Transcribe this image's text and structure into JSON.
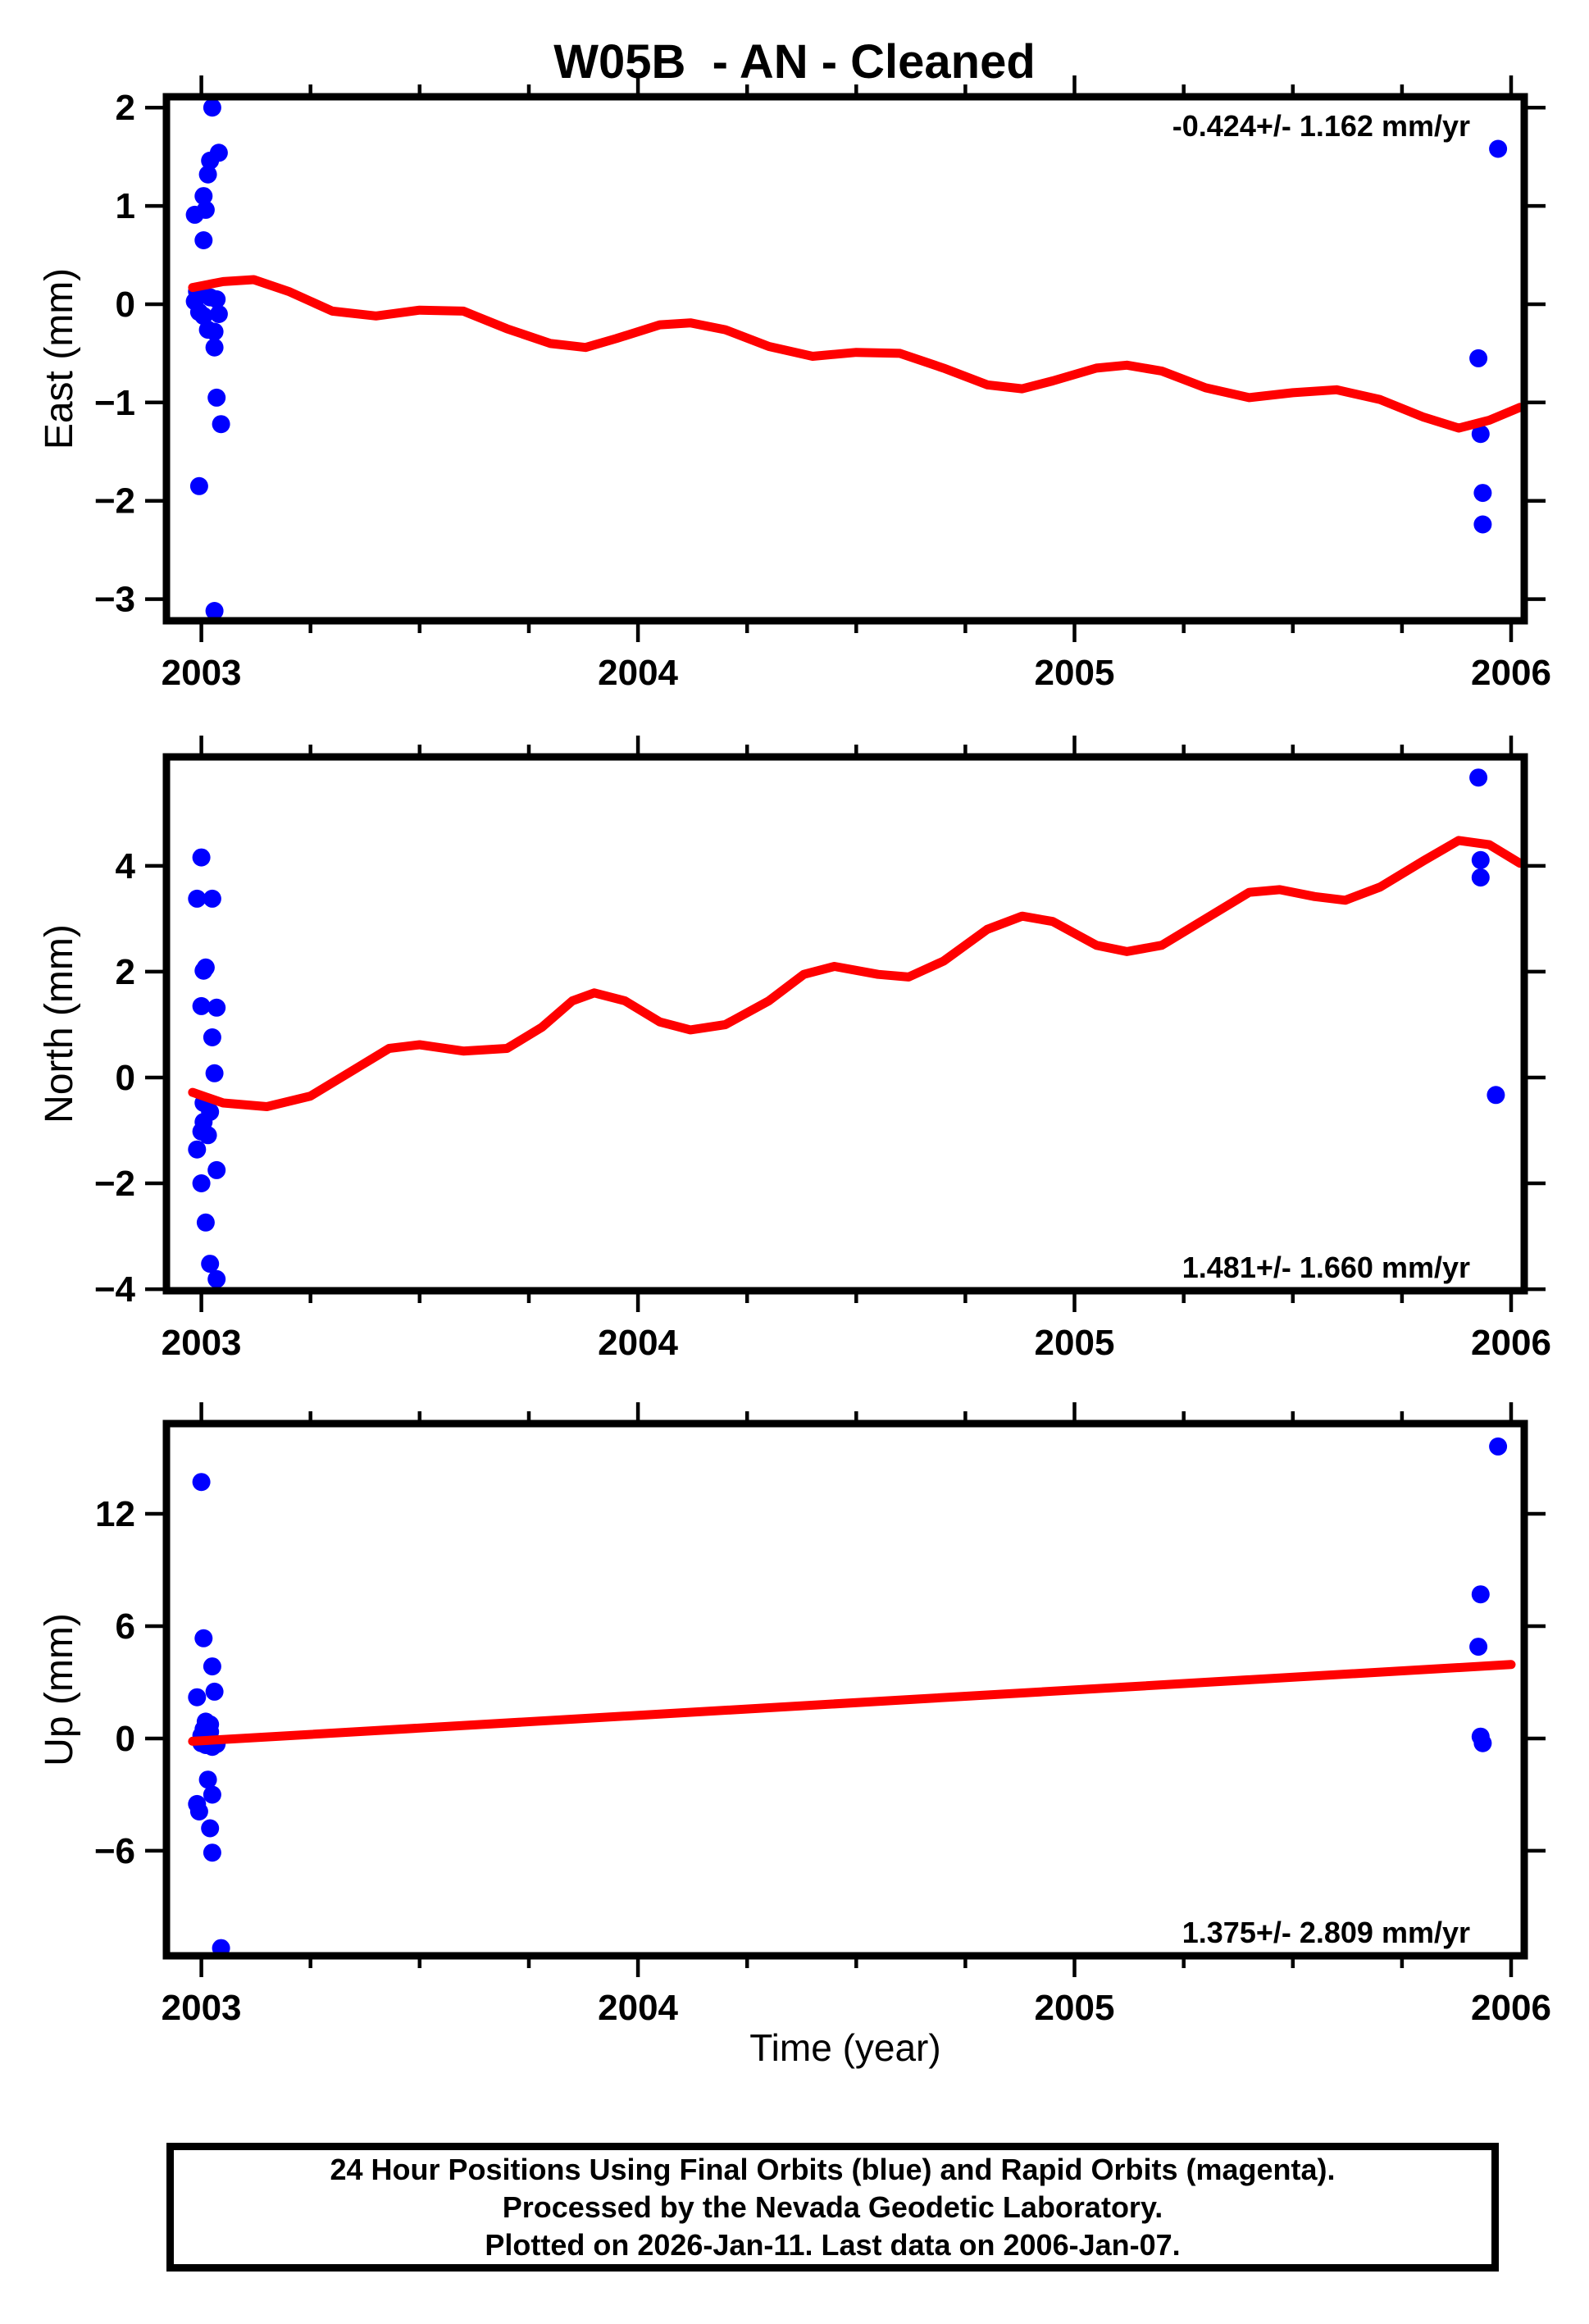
{
  "title": "W05B  - AN - Cleaned",
  "xlabel": "Time (year)",
  "footer": {
    "line1": "24 Hour Positions Using Final Orbits (blue) and Rapid Orbits (magenta).",
    "line2": "Processed by the Nevada Geodetic Laboratory.",
    "line3": "Plotted on 2026-Jan-11. Last data on 2006-Jan-07."
  },
  "colors": {
    "final_orbits": "#0000ff",
    "rapid_orbits": "#ff00ff",
    "trend": "#ff0000",
    "frame": "#000000",
    "background": "#ffffff"
  },
  "chart_data": [
    {
      "type": "scatter",
      "name": "east",
      "ylabel": "East (mm)",
      "annotation": "-0.424+/- 1.162 mm/yr",
      "annotation_corner": "top-right",
      "xlim": [
        2002.92,
        2006.03
      ],
      "ylim": [
        -3.22,
        2.11
      ],
      "xticks": [
        2003,
        2004,
        2005,
        2006
      ],
      "xtick_minor_step": 0.25,
      "yticks": [
        2,
        1,
        0,
        -1,
        -2,
        -3
      ],
      "grid": false,
      "series": [
        {
          "name": "final-orbit-positions",
          "points": [
            [
              2003.025,
              2.0
            ],
            [
              2003.04,
              1.54
            ],
            [
              2003.02,
              1.46
            ],
            [
              2003.015,
              1.32
            ],
            [
              2003.005,
              1.1
            ],
            [
              2003.01,
              0.96
            ],
            [
              2002.985,
              0.91
            ],
            [
              2003.005,
              0.65
            ],
            [
              2002.99,
              0.13
            ],
            [
              2002.985,
              0.03
            ],
            [
              2003.02,
              0.07
            ],
            [
              2003.035,
              0.05
            ],
            [
              2002.995,
              -0.08
            ],
            [
              2003.005,
              -0.12
            ],
            [
              2003.04,
              -0.1
            ],
            [
              2003.015,
              -0.26
            ],
            [
              2003.03,
              -0.28
            ],
            [
              2003.03,
              -0.44
            ],
            [
              2003.035,
              -0.95
            ],
            [
              2003.045,
              -1.22
            ],
            [
              2002.995,
              -1.85
            ],
            [
              2003.03,
              -3.12
            ],
            [
              2005.97,
              1.58
            ],
            [
              2005.925,
              -0.55
            ],
            [
              2005.93,
              -1.32
            ],
            [
              2005.935,
              -1.92
            ],
            [
              2005.935,
              -2.24
            ]
          ]
        }
      ],
      "trend": {
        "name": "model-fit",
        "points": [
          [
            2002.98,
            0.17
          ],
          [
            2003.05,
            0.23
          ],
          [
            2003.12,
            0.25
          ],
          [
            2003.2,
            0.13
          ],
          [
            2003.3,
            -0.07
          ],
          [
            2003.4,
            -0.12
          ],
          [
            2003.5,
            -0.06
          ],
          [
            2003.6,
            -0.07
          ],
          [
            2003.7,
            -0.25
          ],
          [
            2003.8,
            -0.4
          ],
          [
            2003.88,
            -0.44
          ],
          [
            2003.95,
            -0.35
          ],
          [
            2004.05,
            -0.21
          ],
          [
            2004.12,
            -0.19
          ],
          [
            2004.2,
            -0.26
          ],
          [
            2004.3,
            -0.43
          ],
          [
            2004.4,
            -0.53
          ],
          [
            2004.5,
            -0.49
          ],
          [
            2004.6,
            -0.5
          ],
          [
            2004.7,
            -0.65
          ],
          [
            2004.8,
            -0.82
          ],
          [
            2004.88,
            -0.86
          ],
          [
            2004.95,
            -0.78
          ],
          [
            2005.05,
            -0.65
          ],
          [
            2005.12,
            -0.62
          ],
          [
            2005.2,
            -0.68
          ],
          [
            2005.3,
            -0.85
          ],
          [
            2005.4,
            -0.95
          ],
          [
            2005.5,
            -0.9
          ],
          [
            2005.6,
            -0.87
          ],
          [
            2005.7,
            -0.97
          ],
          [
            2005.8,
            -1.15
          ],
          [
            2005.88,
            -1.26
          ],
          [
            2005.95,
            -1.18
          ],
          [
            2006.02,
            -1.05
          ]
        ]
      }
    },
    {
      "type": "scatter",
      "name": "north",
      "ylabel": "North (mm)",
      "annotation": "1.481+/- 1.660 mm/yr",
      "annotation_corner": "bottom-right",
      "xlim": [
        2002.92,
        2006.03
      ],
      "ylim": [
        -4.03,
        6.06
      ],
      "xticks": [
        2003,
        2004,
        2005,
        2006
      ],
      "xtick_minor_step": 0.25,
      "yticks": [
        4,
        2,
        0,
        -2,
        -4
      ],
      "grid": false,
      "series": [
        {
          "name": "final-orbit-positions",
          "points": [
            [
              2003.0,
              4.16
            ],
            [
              2002.99,
              3.38
            ],
            [
              2003.025,
              3.38
            ],
            [
              2003.01,
              2.08
            ],
            [
              2003.005,
              2.02
            ],
            [
              2003.0,
              1.35
            ],
            [
              2003.035,
              1.32
            ],
            [
              2003.025,
              0.76
            ],
            [
              2003.03,
              0.08
            ],
            [
              2003.005,
              -0.48
            ],
            [
              2003.02,
              -0.65
            ],
            [
              2003.005,
              -0.84
            ],
            [
              2003.0,
              -1.02
            ],
            [
              2003.015,
              -1.09
            ],
            [
              2002.99,
              -1.36
            ],
            [
              2003.035,
              -1.75
            ],
            [
              2003.0,
              -2.0
            ],
            [
              2003.01,
              -2.74
            ],
            [
              2003.02,
              -3.52
            ],
            [
              2003.035,
              -3.81
            ],
            [
              2005.925,
              5.67
            ],
            [
              2005.93,
              4.11
            ],
            [
              2005.93,
              3.78
            ],
            [
              2005.965,
              -0.33
            ]
          ]
        }
      ],
      "trend": {
        "name": "model-fit",
        "points": [
          [
            2002.98,
            -0.28
          ],
          [
            2003.05,
            -0.48
          ],
          [
            2003.15,
            -0.55
          ],
          [
            2003.25,
            -0.35
          ],
          [
            2003.35,
            0.15
          ],
          [
            2003.43,
            0.55
          ],
          [
            2003.5,
            0.62
          ],
          [
            2003.6,
            0.5
          ],
          [
            2003.7,
            0.55
          ],
          [
            2003.78,
            0.95
          ],
          [
            2003.85,
            1.45
          ],
          [
            2003.9,
            1.6
          ],
          [
            2003.97,
            1.45
          ],
          [
            2004.05,
            1.05
          ],
          [
            2004.12,
            0.9
          ],
          [
            2004.2,
            1.0
          ],
          [
            2004.3,
            1.45
          ],
          [
            2004.38,
            1.95
          ],
          [
            2004.45,
            2.1
          ],
          [
            2004.55,
            1.95
          ],
          [
            2004.62,
            1.9
          ],
          [
            2004.7,
            2.2
          ],
          [
            2004.8,
            2.8
          ],
          [
            2004.88,
            3.05
          ],
          [
            2004.95,
            2.95
          ],
          [
            2005.05,
            2.5
          ],
          [
            2005.12,
            2.38
          ],
          [
            2005.2,
            2.5
          ],
          [
            2005.3,
            3.0
          ],
          [
            2005.4,
            3.5
          ],
          [
            2005.47,
            3.55
          ],
          [
            2005.55,
            3.42
          ],
          [
            2005.62,
            3.35
          ],
          [
            2005.7,
            3.6
          ],
          [
            2005.8,
            4.1
          ],
          [
            2005.88,
            4.48
          ],
          [
            2005.95,
            4.4
          ],
          [
            2006.02,
            4.05
          ]
        ]
      }
    },
    {
      "type": "scatter",
      "name": "up",
      "ylabel": "Up (mm)",
      "annotation": "1.375+/- 2.809 mm/yr",
      "annotation_corner": "bottom-right",
      "xlim": [
        2002.92,
        2006.03
      ],
      "ylim": [
        -11.61,
        16.82
      ],
      "xticks": [
        2003,
        2004,
        2005,
        2006
      ],
      "xtick_minor_step": 0.25,
      "yticks": [
        12,
        6,
        0,
        -6
      ],
      "grid": false,
      "series": [
        {
          "name": "final-orbit-positions",
          "points": [
            [
              2003.0,
              13.7
            ],
            [
              2003.005,
              5.35
            ],
            [
              2003.025,
              3.85
            ],
            [
              2002.99,
              2.2
            ],
            [
              2003.03,
              2.5
            ],
            [
              2003.01,
              0.9
            ],
            [
              2003.02,
              0.75
            ],
            [
              2003.005,
              0.5
            ],
            [
              2003.02,
              0.35
            ],
            [
              2003.0,
              0.15
            ],
            [
              2003.015,
              0.0
            ],
            [
              2003.0,
              -0.25
            ],
            [
              2003.01,
              -0.35
            ],
            [
              2003.025,
              -0.45
            ],
            [
              2003.035,
              -0.3
            ],
            [
              2003.015,
              -2.2
            ],
            [
              2003.025,
              -3.0
            ],
            [
              2002.99,
              -3.5
            ],
            [
              2002.995,
              -3.9
            ],
            [
              2003.02,
              -4.8
            ],
            [
              2003.025,
              -6.1
            ],
            [
              2003.045,
              -11.2
            ],
            [
              2005.97,
              15.6
            ],
            [
              2005.93,
              7.7
            ],
            [
              2005.925,
              4.9
            ],
            [
              2005.93,
              0.1
            ],
            [
              2005.935,
              -0.25
            ]
          ]
        }
      ],
      "trend": {
        "name": "model-fit",
        "points": [
          [
            2002.98,
            -0.15
          ],
          [
            2006.0,
            3.95
          ]
        ]
      }
    }
  ]
}
